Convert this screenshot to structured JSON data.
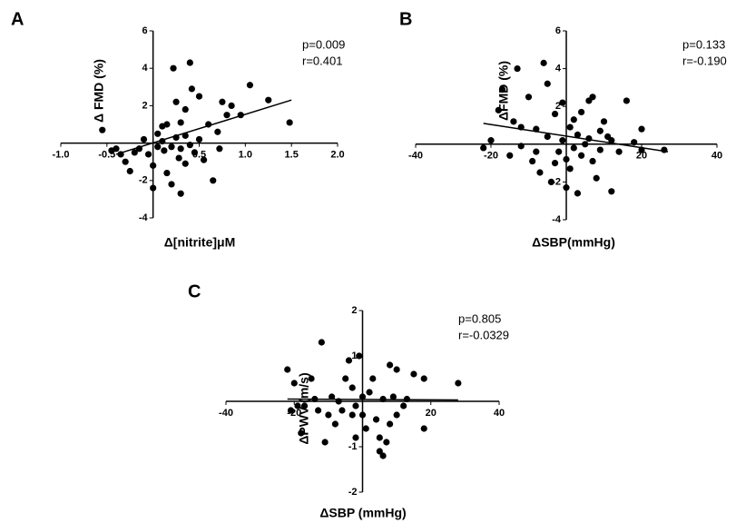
{
  "chart_data": [
    {
      "type": "scatter",
      "panel": "A",
      "xlabel": "Δ[nitrite]μM",
      "ylabel": "Δ FMD (%)",
      "annotations": [
        "p=0.009",
        "r=0.401"
      ],
      "color": "#000000",
      "xlim": [
        -1,
        2
      ],
      "ylim": [
        -4,
        6
      ],
      "xticks": [
        {
          "value": -1,
          "label": "-1.0"
        },
        {
          "value": -0.5,
          "label": "-0.5"
        },
        0.5,
        {
          "value": 1,
          "label": "1.0"
        },
        1.5,
        {
          "value": 2,
          "label": "2.0"
        }
      ],
      "yticks": [
        -4,
        -2,
        2,
        4,
        6
      ],
      "x": [
        -0.55,
        -0.45,
        -0.4,
        -0.35,
        -0.3,
        -0.25,
        -0.2,
        -0.15,
        -0.1,
        -0.05,
        0,
        0,
        0.05,
        0.05,
        0.1,
        0.1,
        0.12,
        0.15,
        0.15,
        0.2,
        0.2,
        0.22,
        0.25,
        0.25,
        0.28,
        0.3,
        0.3,
        0.35,
        0.35,
        0.4,
        0.4,
        0.42,
        0.45,
        0.5,
        0.5,
        0.55,
        0.6,
        0.65,
        0.7,
        0.72,
        0.75,
        0.8,
        0.85,
        0.95,
        1.05,
        1.25,
        1.48,
        0.35,
        0.3
      ],
      "y": [
        0.7,
        -0.4,
        -0.3,
        -0.6,
        -1.0,
        -1.5,
        -0.5,
        -0.3,
        0.2,
        -0.6,
        -1.2,
        -2.4,
        -0.2,
        0.5,
        0.9,
        0.1,
        -0.4,
        -1.6,
        1.0,
        -0.2,
        -2.2,
        4.0,
        2.2,
        0.3,
        -0.8,
        -2.7,
        1.1,
        0.4,
        1.8,
        4.3,
        -0.1,
        2.9,
        -0.5,
        2.5,
        0.2,
        -0.9,
        1.0,
        -2.0,
        0.6,
        -0.3,
        2.2,
        1.5,
        2.0,
        1.5,
        3.1,
        2.3,
        1.1,
        -1.1,
        -0.3
      ],
      "fit": {
        "x": [
          -0.4,
          1.5
        ],
        "y": [
          -0.6,
          2.3
        ]
      }
    },
    {
      "type": "scatter",
      "panel": "B",
      "xlabel": "ΔSBP(mmHg)",
      "ylabel": "ΔFMD (%)",
      "annotations": [
        "p=0.133",
        "r=-0.190"
      ],
      "color": "#000000",
      "xlim": [
        -40,
        40
      ],
      "ylim": [
        -4,
        6
      ],
      "xticks": [
        -40,
        -20,
        20,
        40
      ],
      "yticks": [
        -4,
        -2,
        2,
        4,
        6
      ],
      "x": [
        -22,
        -20,
        -18,
        -17,
        -15,
        -14,
        -13,
        -12,
        -10,
        -9,
        -8,
        -7,
        -6,
        -5,
        -5,
        -4,
        -3,
        -2,
        -1,
        -1,
        0,
        0,
        1,
        1,
        2,
        2,
        3,
        3,
        4,
        4,
        5,
        6,
        6,
        7,
        7,
        8,
        9,
        9,
        10,
        11,
        12,
        12,
        14,
        16,
        18,
        20,
        20,
        26,
        -8,
        -12,
        -3
      ],
      "y": [
        -0.2,
        0.2,
        1.8,
        2.9,
        -0.6,
        1.2,
        4.0,
        -0.1,
        2.5,
        -0.9,
        0.8,
        -1.5,
        4.3,
        3.2,
        0.4,
        -2.0,
        1.6,
        -0.4,
        0.2,
        2.2,
        -0.8,
        -2.3,
        0.9,
        -1.3,
        1.3,
        -0.2,
        -2.6,
        0.5,
        1.7,
        -0.6,
        0,
        0.3,
        2.3,
        -0.9,
        2.5,
        -1.8,
        0.7,
        -0.3,
        1.2,
        0.4,
        -2.5,
        0.2,
        -0.4,
        2.3,
        0.1,
        0.8,
        -0.3,
        -0.3,
        -0.4,
        0.9,
        -1.0
      ],
      "fit": {
        "x": [
          -22,
          27
        ],
        "y": [
          1.1,
          -0.4
        ]
      }
    },
    {
      "type": "scatter",
      "panel": "C",
      "xlabel": "ΔSBP (mmHg)",
      "ylabel": "ΔPWV (m/s)",
      "annotations": [
        "p=0.805",
        "r=-0.0329"
      ],
      "color": "#000000",
      "xlim": [
        -40,
        40
      ],
      "ylim": [
        -2,
        2
      ],
      "xticks": [
        -40,
        -20,
        20,
        40
      ],
      "yticks": [
        -2,
        -1,
        1,
        2
      ],
      "x": [
        -22,
        -21,
        -20,
        -19,
        -18,
        -17,
        -15,
        -14,
        -13,
        -12,
        -11,
        -10,
        -9,
        -8,
        -7,
        -6,
        -5,
        -4,
        -3,
        -2,
        -2,
        -1,
        0,
        0,
        1,
        2,
        3,
        4,
        5,
        5,
        6,
        6,
        7,
        8,
        8,
        9,
        10,
        10,
        12,
        13,
        15,
        18,
        18,
        28,
        -3
      ],
      "y": [
        0.7,
        -0.2,
        0.4,
        -0.1,
        -0.7,
        -0.1,
        0.5,
        0.05,
        -0.2,
        1.3,
        -0.9,
        -0.3,
        0.1,
        -0.5,
        0,
        -0.2,
        0.5,
        0.9,
        0.3,
        -0.1,
        -0.8,
        1.0,
        0.1,
        -0.3,
        -0.6,
        0.2,
        0.5,
        -0.4,
        -0.8,
        -1.1,
        -1.2,
        0.05,
        -0.9,
        0.8,
        -0.5,
        0.1,
        0.7,
        -0.3,
        -0.1,
        0.05,
        0.6,
        0.5,
        -0.6,
        0.4,
        -0.3
      ],
      "fit": {
        "x": [
          -22,
          28
        ],
        "y": [
          0.05,
          0.03
        ]
      }
    }
  ]
}
